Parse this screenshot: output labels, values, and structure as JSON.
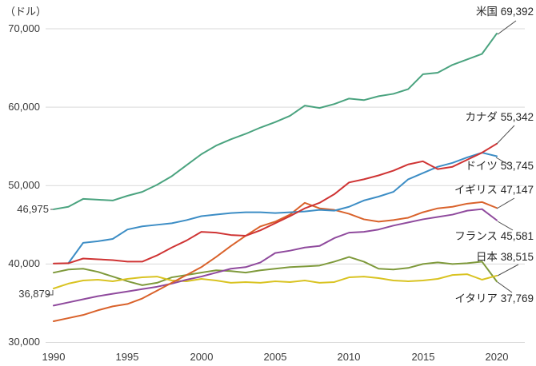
{
  "chart_data": {
    "type": "line",
    "unit_label": "（ドル）",
    "grid": "horizontal",
    "legend": "end-of-line-labels",
    "ylim": [
      30000,
      70000
    ],
    "x": [
      1990,
      1991,
      1992,
      1993,
      1994,
      1995,
      1996,
      1997,
      1998,
      1999,
      2000,
      2001,
      2002,
      2003,
      2004,
      2005,
      2006,
      2007,
      2008,
      2009,
      2010,
      2011,
      2012,
      2013,
      2014,
      2015,
      2016,
      2017,
      2018,
      2019,
      2020
    ],
    "x_ticks": [
      "1990",
      "1995",
      "2000",
      "2005",
      "2010",
      "2015",
      "2020"
    ],
    "y_ticks": [
      {
        "value": 70000,
        "label": "70,000"
      },
      {
        "value": 60000,
        "label": "60,000"
      },
      {
        "value": 50000,
        "label": "50,000"
      },
      {
        "value": 40000,
        "label": "40,000"
      },
      {
        "value": 30000,
        "label": "30,000"
      }
    ],
    "start_annotations": [
      {
        "series": "米国",
        "year": 1990,
        "value": 46975,
        "label": "46,975"
      },
      {
        "series": "日本",
        "year": 1990,
        "value": 36879,
        "label": "36,879"
      }
    ],
    "series": [
      {
        "id": "us",
        "name": "米国",
        "end_label": "69,392",
        "end_value": 69392,
        "color": "#4aa37f",
        "values": [
          46975,
          47300,
          48300,
          48200,
          48100,
          48700,
          49200,
          50100,
          51200,
          52600,
          54000,
          55100,
          55900,
          56600,
          57400,
          58100,
          58900,
          60200,
          59900,
          60400,
          61100,
          60900,
          61400,
          61700,
          62300,
          64200,
          64400,
          65400,
          66100,
          66800,
          69392
        ]
      },
      {
        "id": "canada",
        "name": "カナダ",
        "end_label": "55,342",
        "end_value": 55342,
        "color": "#cf3434",
        "values": [
          40070,
          40100,
          40700,
          40600,
          40500,
          40300,
          40300,
          41100,
          42100,
          43000,
          44100,
          44000,
          43700,
          43600,
          44300,
          45200,
          46100,
          47100,
          47800,
          48900,
          50400,
          50800,
          51300,
          51900,
          52700,
          53100,
          52100,
          52400,
          53300,
          54200,
          55342
        ]
      },
      {
        "id": "germany",
        "name": "ドイツ",
        "end_label": "53,745",
        "end_value": 53745,
        "color": "#3c8dc5",
        "values": [
          null,
          40100,
          42700,
          42900,
          43200,
          44400,
          44800,
          45000,
          45200,
          45600,
          46100,
          46300,
          46500,
          46600,
          46600,
          46500,
          46600,
          46700,
          46900,
          46800,
          47300,
          48100,
          48600,
          49200,
          50800,
          51600,
          52400,
          52900,
          53600,
          54200,
          53745
        ]
      },
      {
        "id": "uk",
        "name": "イギリス",
        "end_label": "47,147",
        "end_value": 47147,
        "color": "#d9622b",
        "values": [
          32700,
          33100,
          33500,
          34100,
          34600,
          34900,
          35600,
          36600,
          37600,
          38600,
          39600,
          40900,
          42300,
          43600,
          44800,
          45400,
          46300,
          47800,
          47100,
          46900,
          46400,
          45700,
          45400,
          45600,
          45900,
          46600,
          47100,
          47300,
          47700,
          47900,
          47147
        ]
      },
      {
        "id": "france",
        "name": "フランス",
        "end_label": "45,581",
        "end_value": 45581,
        "color": "#8f4a9d",
        "values": [
          34700,
          35100,
          35500,
          35900,
          36200,
          36500,
          36800,
          37100,
          37500,
          38000,
          38400,
          38900,
          39400,
          39600,
          40200,
          41400,
          41700,
          42100,
          42300,
          43300,
          44000,
          44100,
          44400,
          44900,
          45300,
          45700,
          46000,
          46300,
          46800,
          47000,
          45581
        ]
      },
      {
        "id": "japan",
        "name": "日本",
        "end_label": "38,515",
        "end_value": 38515,
        "color": "#d9c322",
        "values": [
          36879,
          37500,
          37900,
          38000,
          37800,
          38100,
          38300,
          38400,
          37900,
          37800,
          38100,
          37900,
          37600,
          37700,
          37600,
          37800,
          37700,
          37900,
          37600,
          37700,
          38300,
          38400,
          38200,
          37900,
          37800,
          37900,
          38100,
          38600,
          38700,
          38000,
          38515
        ]
      },
      {
        "id": "italy",
        "name": "イタリア",
        "end_label": "37,769",
        "end_value": 37769,
        "color": "#7f9a3c",
        "values": [
          38900,
          39300,
          39400,
          39000,
          38400,
          37800,
          37300,
          37600,
          38300,
          38600,
          38900,
          39200,
          39100,
          38900,
          39200,
          39400,
          39600,
          39700,
          39800,
          40300,
          40900,
          40300,
          39400,
          39300,
          39500,
          40000,
          40200,
          40000,
          40100,
          40300,
          37769
        ]
      }
    ]
  }
}
